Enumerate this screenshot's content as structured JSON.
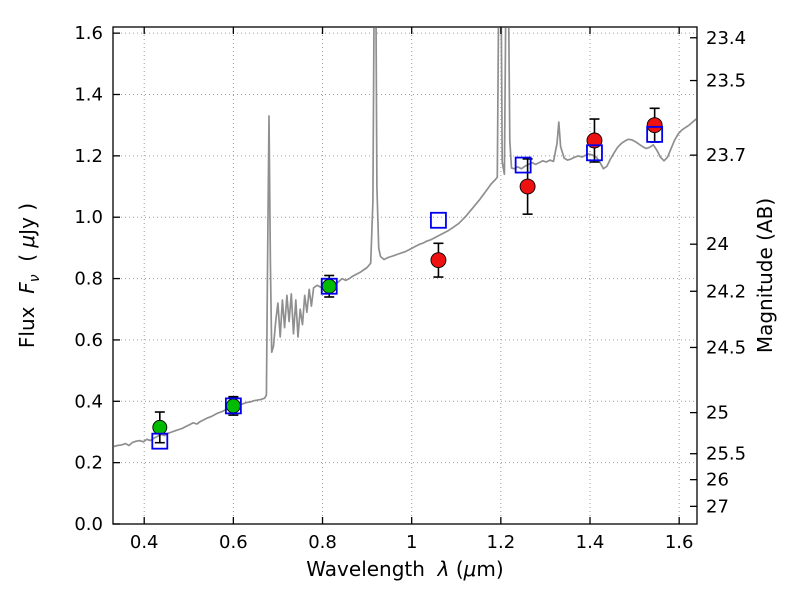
{
  "chart_data": {
    "type": "line+scatter",
    "title": "",
    "xlabel_parts": [
      {
        "t": "Wavelength  "
      },
      {
        "t": "λ",
        "i": true
      },
      {
        "t": " ("
      },
      {
        "t": "μ",
        "i": true
      },
      {
        "t": "m)"
      }
    ],
    "ylabel_left_parts": [
      {
        "t": "Flux  "
      },
      {
        "t": "F",
        "i": true
      },
      {
        "t": "ν",
        "i": true,
        "sub": true
      },
      {
        "t": "  ( "
      },
      {
        "t": "μ",
        "i": true
      },
      {
        "t": "Jy )"
      }
    ],
    "ylabel_right": "Magnitude (AB)",
    "xlim": [
      0.33,
      1.64
    ],
    "ylim": [
      0.0,
      1.62
    ],
    "grid": true,
    "legend": "none",
    "ab_zeropoint": 23.9,
    "xticks": [
      {
        "v": 0.4,
        "label": "0.4"
      },
      {
        "v": 0.6,
        "label": "0.6"
      },
      {
        "v": 0.8,
        "label": "0.8"
      },
      {
        "v": 1.0,
        "label": "1"
      },
      {
        "v": 1.2,
        "label": "1.2"
      },
      {
        "v": 1.4,
        "label": "1.4"
      },
      {
        "v": 1.6,
        "label": "1.6"
      }
    ],
    "yticks_left": [
      {
        "v": 0.0,
        "label": "0.0"
      },
      {
        "v": 0.2,
        "label": "0.2"
      },
      {
        "v": 0.4,
        "label": "0.4"
      },
      {
        "v": 0.6,
        "label": "0.6"
      },
      {
        "v": 0.8,
        "label": "0.8"
      },
      {
        "v": 1.0,
        "label": "1.0"
      },
      {
        "v": 1.2,
        "label": "1.2"
      },
      {
        "v": 1.4,
        "label": "1.4"
      },
      {
        "v": 1.6,
        "label": "1.6"
      }
    ],
    "yticks_right": [
      {
        "mag": 23.4,
        "label": "23.4"
      },
      {
        "mag": 23.5,
        "label": "23.5"
      },
      {
        "mag": 23.7,
        "label": "23.7"
      },
      {
        "mag": 24.0,
        "label": "24"
      },
      {
        "mag": 24.2,
        "label": "24.2"
      },
      {
        "mag": 24.5,
        "label": "24.5"
      },
      {
        "mag": 25.0,
        "label": "25"
      },
      {
        "mag": 25.5,
        "label": "25.5"
      },
      {
        "mag": 26.0,
        "label": "26"
      },
      {
        "mag": 27.0,
        "label": "27"
      }
    ],
    "spectrum": {
      "name": "model-spectrum",
      "color": "#8f8f8f",
      "points": [
        [
          0.33,
          0.252
        ],
        [
          0.34,
          0.256
        ],
        [
          0.35,
          0.258
        ],
        [
          0.358,
          0.262
        ],
        [
          0.366,
          0.256
        ],
        [
          0.374,
          0.266
        ],
        [
          0.382,
          0.27
        ],
        [
          0.39,
          0.272
        ],
        [
          0.398,
          0.268
        ],
        [
          0.406,
          0.276
        ],
        [
          0.414,
          0.272
        ],
        [
          0.422,
          0.28
        ],
        [
          0.43,
          0.286
        ],
        [
          0.438,
          0.292
        ],
        [
          0.446,
          0.288
        ],
        [
          0.454,
          0.296
        ],
        [
          0.462,
          0.3
        ],
        [
          0.47,
          0.304
        ],
        [
          0.478,
          0.308
        ],
        [
          0.486,
          0.312
        ],
        [
          0.494,
          0.318
        ],
        [
          0.502,
          0.324
        ],
        [
          0.51,
          0.33
        ],
        [
          0.518,
          0.326
        ],
        [
          0.526,
          0.334
        ],
        [
          0.534,
          0.34
        ],
        [
          0.542,
          0.346
        ],
        [
          0.55,
          0.35
        ],
        [
          0.558,
          0.356
        ],
        [
          0.566,
          0.362
        ],
        [
          0.574,
          0.366
        ],
        [
          0.582,
          0.372
        ],
        [
          0.59,
          0.376
        ],
        [
          0.598,
          0.38
        ],
        [
          0.606,
          0.386
        ],
        [
          0.614,
          0.388
        ],
        [
          0.622,
          0.392
        ],
        [
          0.63,
          0.396
        ],
        [
          0.638,
          0.398
        ],
        [
          0.646,
          0.402
        ],
        [
          0.654,
          0.404
        ],
        [
          0.662,
          0.406
        ],
        [
          0.67,
          0.41
        ],
        [
          0.674,
          0.42
        ],
        [
          0.677,
          0.9
        ],
        [
          0.68,
          1.33
        ],
        [
          0.683,
          0.85
        ],
        [
          0.686,
          0.56
        ],
        [
          0.69,
          0.58
        ],
        [
          0.695,
          0.66
        ],
        [
          0.7,
          0.72
        ],
        [
          0.705,
          0.61
        ],
        [
          0.71,
          0.73
        ],
        [
          0.715,
          0.64
        ],
        [
          0.72,
          0.745
        ],
        [
          0.725,
          0.66
        ],
        [
          0.73,
          0.75
        ],
        [
          0.735,
          0.62
        ],
        [
          0.74,
          0.73
        ],
        [
          0.745,
          0.61
        ],
        [
          0.75,
          0.7
        ],
        [
          0.755,
          0.65
        ],
        [
          0.76,
          0.745
        ],
        [
          0.765,
          0.69
        ],
        [
          0.77,
          0.765
        ],
        [
          0.775,
          0.71
        ],
        [
          0.78,
          0.77
        ],
        [
          0.788,
          0.778
        ],
        [
          0.796,
          0.772
        ],
        [
          0.804,
          0.78
        ],
        [
          0.812,
          0.776
        ],
        [
          0.82,
          0.772
        ],
        [
          0.828,
          0.78
        ],
        [
          0.836,
          0.79
        ],
        [
          0.844,
          0.8
        ],
        [
          0.852,
          0.794
        ],
        [
          0.86,
          0.8
        ],
        [
          0.868,
          0.808
        ],
        [
          0.876,
          0.814
        ],
        [
          0.884,
          0.82
        ],
        [
          0.892,
          0.828
        ],
        [
          0.9,
          0.836
        ],
        [
          0.908,
          0.85
        ],
        [
          0.913,
          1.05
        ],
        [
          0.916,
          1.75
        ],
        [
          0.919,
          1.9
        ],
        [
          0.922,
          1.1
        ],
        [
          0.926,
          0.9
        ],
        [
          0.93,
          0.872
        ],
        [
          0.938,
          0.862
        ],
        [
          0.946,
          0.868
        ],
        [
          0.954,
          0.872
        ],
        [
          0.962,
          0.876
        ],
        [
          0.97,
          0.88
        ],
        [
          0.978,
          0.884
        ],
        [
          0.986,
          0.888
        ],
        [
          0.994,
          0.894
        ],
        [
          1.002,
          0.9
        ],
        [
          1.01,
          0.906
        ],
        [
          1.018,
          0.912
        ],
        [
          1.026,
          0.916
        ],
        [
          1.034,
          0.922
        ],
        [
          1.042,
          0.926
        ],
        [
          1.05,
          0.932
        ],
        [
          1.058,
          0.938
        ],
        [
          1.066,
          0.944
        ],
        [
          1.074,
          0.95
        ],
        [
          1.082,
          0.956
        ],
        [
          1.09,
          0.964
        ],
        [
          1.098,
          0.972
        ],
        [
          1.106,
          0.98
        ],
        [
          1.114,
          0.992
        ],
        [
          1.122,
          1.004
        ],
        [
          1.13,
          1.018
        ],
        [
          1.138,
          1.032
        ],
        [
          1.146,
          1.046
        ],
        [
          1.154,
          1.06
        ],
        [
          1.162,
          1.076
        ],
        [
          1.17,
          1.092
        ],
        [
          1.178,
          1.108
        ],
        [
          1.186,
          1.12
        ],
        [
          1.192,
          1.13
        ],
        [
          1.196,
          1.9
        ],
        [
          1.2,
          1.9
        ],
        [
          1.203,
          1.18
        ],
        [
          1.208,
          1.14
        ],
        [
          1.212,
          1.85
        ],
        [
          1.216,
          1.9
        ],
        [
          1.22,
          1.25
        ],
        [
          1.224,
          1.16
        ],
        [
          1.23,
          1.158
        ],
        [
          1.238,
          1.164
        ],
        [
          1.246,
          1.158
        ],
        [
          1.254,
          1.166
        ],
        [
          1.262,
          1.172
        ],
        [
          1.27,
          1.178
        ],
        [
          1.278,
          1.172
        ],
        [
          1.286,
          1.178
        ],
        [
          1.294,
          1.184
        ],
        [
          1.302,
          1.18
        ],
        [
          1.31,
          1.186
        ],
        [
          1.318,
          1.182
        ],
        [
          1.326,
          1.24
        ],
        [
          1.33,
          1.31
        ],
        [
          1.334,
          1.23
        ],
        [
          1.342,
          1.192
        ],
        [
          1.35,
          1.186
        ],
        [
          1.358,
          1.19
        ],
        [
          1.366,
          1.196
        ],
        [
          1.374,
          1.2
        ],
        [
          1.382,
          1.196
        ],
        [
          1.39,
          1.202
        ],
        [
          1.398,
          1.206
        ],
        [
          1.406,
          1.202
        ],
        [
          1.414,
          1.196
        ],
        [
          1.422,
          1.18
        ],
        [
          1.43,
          1.158
        ],
        [
          1.438,
          1.166
        ],
        [
          1.446,
          1.19
        ],
        [
          1.454,
          1.21
        ],
        [
          1.462,
          1.228
        ],
        [
          1.47,
          1.24
        ],
        [
          1.478,
          1.248
        ],
        [
          1.486,
          1.254
        ],
        [
          1.494,
          1.252
        ],
        [
          1.502,
          1.246
        ],
        [
          1.51,
          1.238
        ],
        [
          1.518,
          1.23
        ],
        [
          1.526,
          1.224
        ],
        [
          1.534,
          1.228
        ],
        [
          1.542,
          1.236
        ],
        [
          1.55,
          1.218
        ],
        [
          1.558,
          1.196
        ],
        [
          1.566,
          1.184
        ],
        [
          1.574,
          1.196
        ],
        [
          1.582,
          1.224
        ],
        [
          1.59,
          1.252
        ],
        [
          1.598,
          1.272
        ],
        [
          1.606,
          1.284
        ],
        [
          1.614,
          1.292
        ],
        [
          1.622,
          1.3
        ],
        [
          1.63,
          1.31
        ],
        [
          1.64,
          1.322
        ]
      ]
    },
    "series": [
      {
        "name": "green-circles",
        "marker": "circle",
        "color": "#00bb00",
        "edge": "#000000",
        "size": 7,
        "points": [
          {
            "x": 0.435,
            "y": 0.315,
            "yerr": 0.05
          },
          {
            "x": 0.6,
            "y": 0.385,
            "yerr": 0.03
          },
          {
            "x": 0.815,
            "y": 0.775,
            "yerr": 0.035
          }
        ]
      },
      {
        "name": "red-circles",
        "marker": "circle",
        "color": "#ee1111",
        "edge": "#000000",
        "size": 7.5,
        "points": [
          {
            "x": 1.06,
            "y": 0.86,
            "yerr": 0.055
          },
          {
            "x": 1.26,
            "y": 1.1,
            "yerr": 0.09
          },
          {
            "x": 1.41,
            "y": 1.25,
            "yerr": 0.07
          },
          {
            "x": 1.545,
            "y": 1.3,
            "yerr": 0.055
          }
        ]
      },
      {
        "name": "blue-open-squares",
        "marker": "open-square",
        "color": "#0000ee",
        "size": 7.5,
        "points": [
          {
            "x": 0.435,
            "y": 0.27
          },
          {
            "x": 0.6,
            "y": 0.385
          },
          {
            "x": 0.815,
            "y": 0.775
          },
          {
            "x": 1.06,
            "y": 0.99
          },
          {
            "x": 1.25,
            "y": 1.17
          },
          {
            "x": 1.41,
            "y": 1.21
          },
          {
            "x": 1.545,
            "y": 1.27
          }
        ]
      }
    ]
  }
}
